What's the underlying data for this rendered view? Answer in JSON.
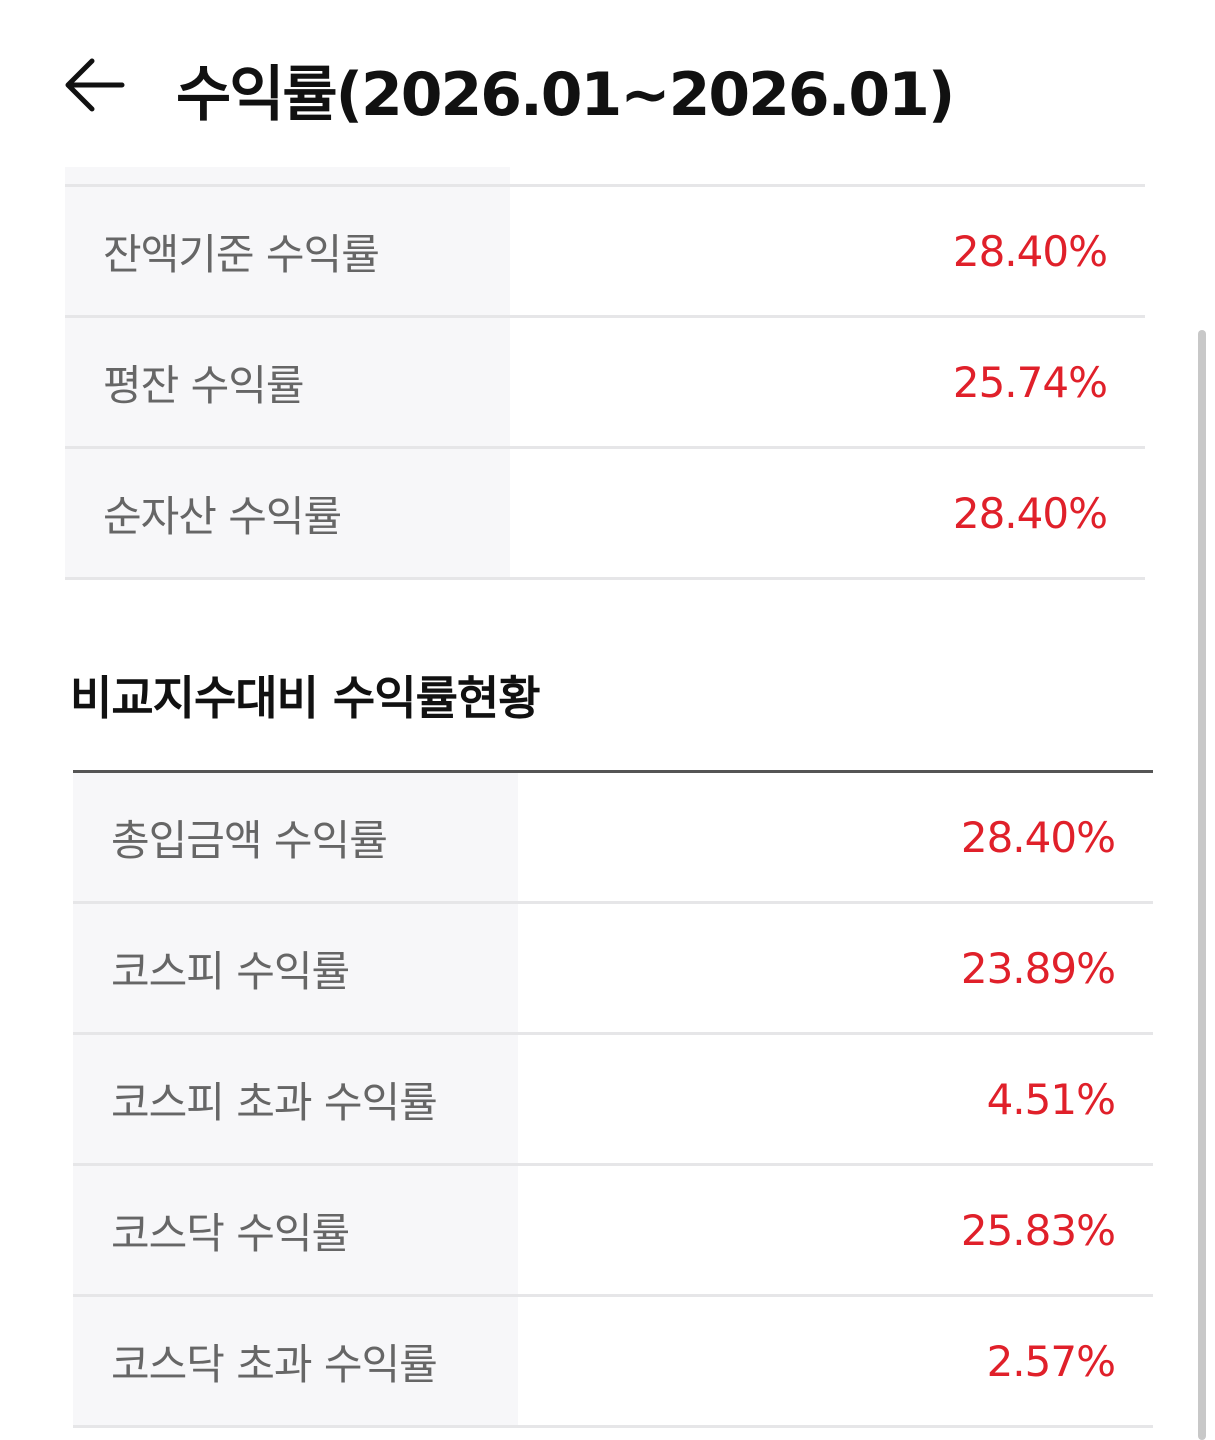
{
  "header": {
    "title": "수익률(2026.01~2026.01)",
    "back_icon": "arrow-left-icon"
  },
  "summary_table": [
    {
      "label": "잔액기준 수익률",
      "value": "28.40%"
    },
    {
      "label": "평잔 수익률",
      "value": "25.74%"
    },
    {
      "label": "순자산 수익률",
      "value": "28.40%"
    }
  ],
  "comparison": {
    "title": "비교지수대비 수익률현황",
    "rows": [
      {
        "label": "총입금액 수익률",
        "value": "28.40%"
      },
      {
        "label": "코스피 수익률",
        "value": "23.89%"
      },
      {
        "label": "코스피 초과 수익률",
        "value": "4.51%"
      },
      {
        "label": "코스닥 수익률",
        "value": "25.83%"
      },
      {
        "label": "코스닥 초과 수익률",
        "value": "2.57%"
      }
    ]
  },
  "colors": {
    "positive": "#e0202a",
    "label": "#666666",
    "label_bg": "#f7f7f9"
  }
}
